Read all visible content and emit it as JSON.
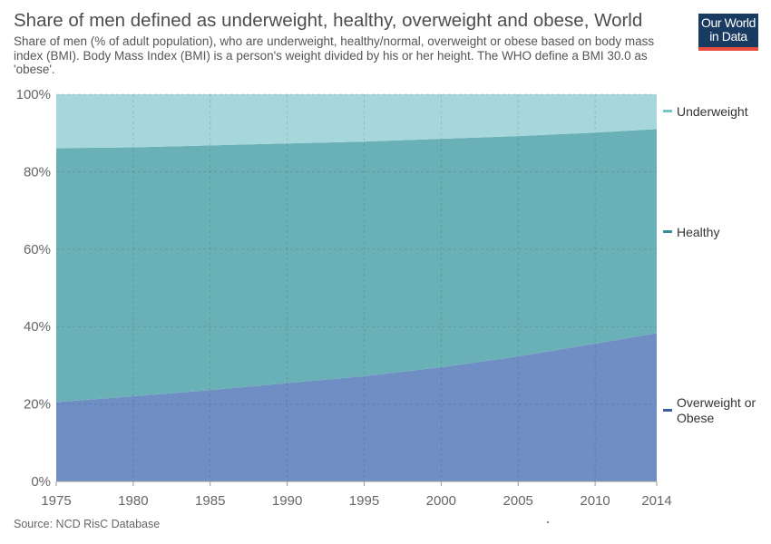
{
  "header": {
    "title": "Share of men defined as underweight, healthy, overweight and obese, World",
    "subtitle": "Share of men (% of adult population), who are underweight, healthy/normal, overweight or obese based on body mass index (BMI). Body Mass Index (BMI) is a person's weight divided by his or her height. The WHO define a BMI 30.0 as 'obese'.",
    "logo_line1": "Our World",
    "logo_line2": "in Data"
  },
  "footer": {
    "source": "Source: NCD RisC Database"
  },
  "colors": {
    "overweight_obese": "#6f8ec4",
    "healthy": "#69b1b6",
    "underweight": "#a5d7db",
    "overweight_legend": "#3b5f9f",
    "healthy_legend": "#2e8f96",
    "underweight_legend": "#79c4ca"
  },
  "chart_data": {
    "type": "area",
    "stacked": true,
    "title": "Share of men defined as underweight, healthy, overweight and obese, World",
    "x": [
      1975,
      1980,
      1985,
      1990,
      1995,
      2000,
      2005,
      2010,
      2014
    ],
    "xticks": [
      "1975",
      "1980",
      "1985",
      "1990",
      "1995",
      "2000",
      "2005",
      "2010",
      "2014"
    ],
    "yticks": [
      "0%",
      "20%",
      "40%",
      "60%",
      "80%",
      "100%"
    ],
    "ylim": [
      0,
      100
    ],
    "xlim": [
      1975,
      2014
    ],
    "grid": true,
    "legend": "right",
    "series": [
      {
        "name": "Overweight or Obese",
        "values": [
          20.5,
          22.0,
          23.6,
          25.4,
          27.2,
          29.5,
          32.3,
          35.6,
          38.3
        ]
      },
      {
        "name": "Healthy",
        "values": [
          65.6,
          64.3,
          63.2,
          61.9,
          60.6,
          59.0,
          56.9,
          54.5,
          52.7
        ]
      },
      {
        "name": "Underweight",
        "values": [
          13.9,
          13.7,
          13.2,
          12.7,
          12.2,
          11.5,
          10.8,
          9.9,
          9.0
        ]
      }
    ],
    "legend_labels": {
      "underweight": "Underweight",
      "healthy": "Healthy",
      "overweight_line1": "Overweight or",
      "overweight_line2": "Obese"
    }
  }
}
